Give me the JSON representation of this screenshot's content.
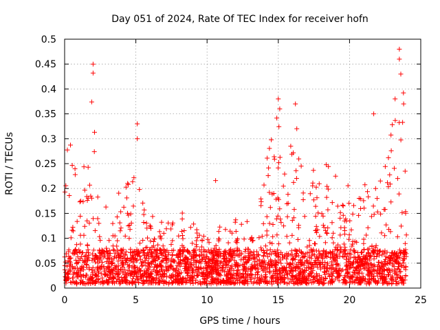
{
  "chart_data": {
    "type": "scatter",
    "title": "Day 051 of 2024, Rate Of TEC Index for receiver hofn",
    "xlabel": "GPS time / hours",
    "ylabel": "ROTI / TECUs",
    "xlim": [
      0,
      25
    ],
    "ylim": [
      0,
      0.5
    ],
    "xticks": [
      0,
      5,
      10,
      15,
      20,
      25
    ],
    "xtick_labels": [
      "0",
      "5",
      "10",
      "15",
      "20",
      "25"
    ],
    "yticks": [
      0,
      0.05,
      0.1,
      0.15,
      0.2,
      0.25,
      0.3,
      0.35,
      0.4,
      0.45,
      0.5
    ],
    "ytick_labels": [
      "0",
      "0.05",
      "0.1",
      "0.15",
      "0.2",
      "0.25",
      "0.3",
      "0.35",
      "0.4",
      "0.45",
      "0.5"
    ],
    "grid": true,
    "marker": "+",
    "color": "#ff0000",
    "x_data_extent": [
      0,
      24
    ],
    "background_level": 0.04,
    "envelope": [
      [
        0.0,
        0.28
      ],
      [
        0.5,
        0.29
      ],
      [
        1.0,
        0.27
      ],
      [
        1.5,
        0.25
      ],
      [
        2.0,
        0.31
      ],
      [
        2.5,
        0.2
      ],
      [
        3.0,
        0.16
      ],
      [
        3.5,
        0.21
      ],
      [
        4.0,
        0.19
      ],
      [
        4.5,
        0.26
      ],
      [
        5.0,
        0.25
      ],
      [
        5.5,
        0.17
      ],
      [
        6.0,
        0.15
      ],
      [
        6.5,
        0.15
      ],
      [
        7.0,
        0.14
      ],
      [
        7.5,
        0.16
      ],
      [
        8.0,
        0.18
      ],
      [
        8.5,
        0.13
      ],
      [
        9.0,
        0.13
      ],
      [
        9.5,
        0.12
      ],
      [
        10.0,
        0.12
      ],
      [
        10.5,
        0.12
      ],
      [
        11.0,
        0.13
      ],
      [
        11.5,
        0.13
      ],
      [
        12.0,
        0.14
      ],
      [
        12.5,
        0.15
      ],
      [
        13.0,
        0.15
      ],
      [
        13.5,
        0.18
      ],
      [
        14.0,
        0.25
      ],
      [
        14.5,
        0.3
      ],
      [
        15.0,
        0.38
      ],
      [
        15.5,
        0.23
      ],
      [
        16.0,
        0.32
      ],
      [
        16.5,
        0.26
      ],
      [
        17.0,
        0.2
      ],
      [
        17.5,
        0.24
      ],
      [
        18.0,
        0.23
      ],
      [
        18.5,
        0.27
      ],
      [
        19.0,
        0.28
      ],
      [
        19.5,
        0.2
      ],
      [
        20.0,
        0.21
      ],
      [
        20.5,
        0.16
      ],
      [
        21.0,
        0.22
      ],
      [
        21.5,
        0.18
      ],
      [
        22.0,
        0.23
      ],
      [
        22.5,
        0.26
      ],
      [
        23.0,
        0.37
      ],
      [
        23.5,
        0.48
      ],
      [
        24.0,
        0.37
      ]
    ],
    "notable_points": [
      [
        1.9,
        0.374
      ],
      [
        2.0,
        0.432
      ],
      [
        2.0,
        0.45
      ],
      [
        2.1,
        0.313
      ],
      [
        5.1,
        0.33
      ],
      [
        5.1,
        0.3
      ],
      [
        10.6,
        0.216
      ],
      [
        15.0,
        0.38
      ],
      [
        15.1,
        0.36
      ],
      [
        16.2,
        0.37
      ],
      [
        16.3,
        0.32
      ],
      [
        21.7,
        0.35
      ],
      [
        23.2,
        0.38
      ],
      [
        23.5,
        0.48
      ],
      [
        23.5,
        0.46
      ],
      [
        23.6,
        0.43
      ],
      [
        23.8,
        0.37
      ]
    ],
    "point_count": 2600
  }
}
